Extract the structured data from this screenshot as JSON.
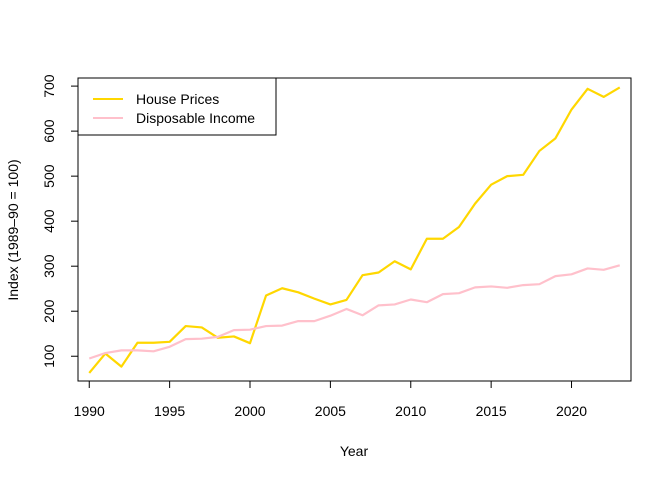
{
  "chart_data": {
    "type": "line",
    "title": "",
    "xlabel": "Year",
    "ylabel": "Index (1989–90 = 100)",
    "xlim": [
      1989.3,
      2023.7
    ],
    "ylim": [
      45,
      718
    ],
    "x_ticks": [
      1990,
      1995,
      2000,
      2005,
      2010,
      2015,
      2020
    ],
    "y_ticks": [
      100,
      200,
      300,
      400,
      500,
      600,
      700
    ],
    "grid": false,
    "legend_position": "top-left",
    "x": [
      1990,
      1991,
      1992,
      1993,
      1994,
      1995,
      1996,
      1997,
      1998,
      1999,
      2000,
      2001,
      2002,
      2003,
      2004,
      2005,
      2006,
      2007,
      2008,
      2009,
      2010,
      2011,
      2012,
      2013,
      2014,
      2015,
      2016,
      2017,
      2018,
      2019,
      2020,
      2021,
      2022,
      2023
    ],
    "series": [
      {
        "name": "House Prices",
        "color": "#FFD700",
        "values": [
          63,
          106,
          77,
          130,
          130,
          132,
          167,
          164,
          141,
          144,
          129,
          235,
          251,
          242,
          228,
          215,
          225,
          280,
          286,
          311,
          293,
          361,
          361,
          387,
          439,
          481,
          500,
          503,
          556,
          584,
          648,
          694,
          676,
          697
        ]
      },
      {
        "name": "Disposable Income",
        "color": "#FFC0CB",
        "values": [
          95,
          107,
          113,
          113,
          111,
          121,
          138,
          139,
          143,
          158,
          159,
          167,
          168,
          178,
          178,
          190,
          205,
          191,
          213,
          215,
          226,
          220,
          238,
          240,
          253,
          255,
          252,
          258,
          260,
          278,
          282,
          295,
          292,
          302
        ]
      }
    ]
  }
}
